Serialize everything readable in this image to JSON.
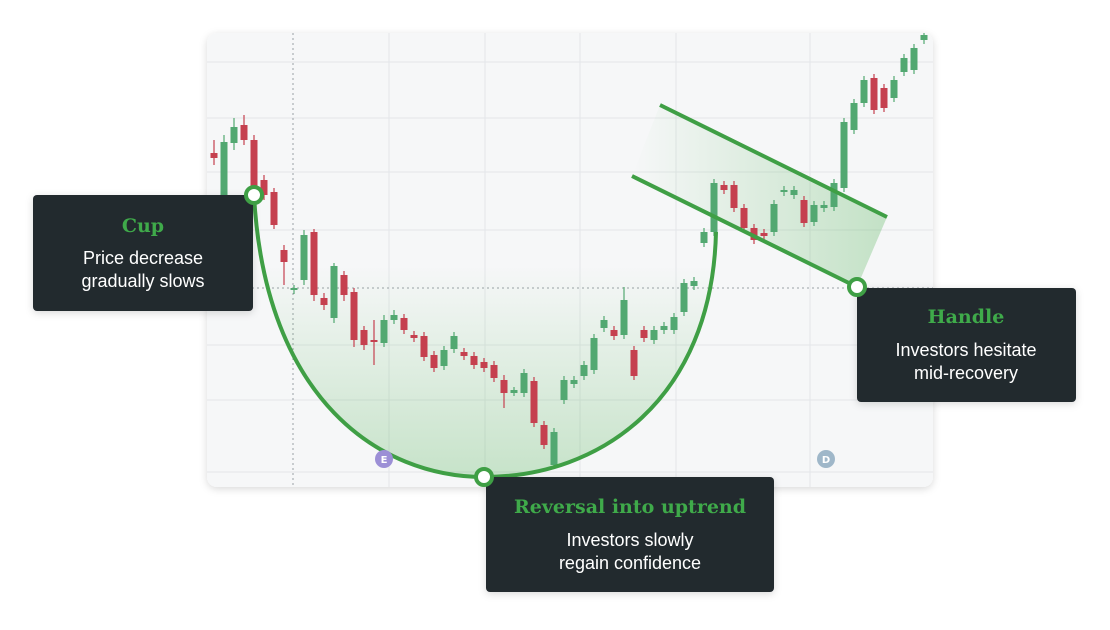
{
  "chart_data": {
    "type": "candlestick",
    "up_color": "#52a871",
    "down_color": "#c5404f",
    "ylim": [
      0,
      454
    ],
    "open": [
      334,
      292,
      344,
      362,
      347,
      307,
      295,
      237,
      197,
      207,
      255,
      189,
      169,
      212,
      195,
      157,
      147,
      144,
      167,
      169,
      152,
      151,
      132,
      121,
      138,
      135,
      131,
      125,
      122,
      107,
      94,
      94,
      106,
      62,
      22,
      87,
      103,
      111,
      117,
      159,
      157,
      152,
      137,
      157,
      147,
      157,
      157,
      175,
      201,
      244,
      255,
      302,
      302,
      279,
      259,
      254,
      255,
      295,
      292,
      287,
      265,
      279,
      280,
      299,
      357,
      384,
      409,
      399,
      389,
      415,
      417,
      447
    ],
    "high": [
      347,
      352,
      369,
      372,
      352,
      312,
      299,
      242,
      202,
      257,
      258,
      194,
      224,
      216,
      199,
      161,
      167,
      172,
      177,
      173,
      156,
      155,
      136,
      141,
      155,
      139,
      135,
      129,
      126,
      112,
      100,
      118,
      110,
      66,
      59,
      111,
      111,
      126,
      153,
      171,
      161,
      200,
      141,
      161,
      161,
      165,
      174,
      208,
      210,
      259,
      308,
      306,
      306,
      283,
      263,
      258,
      287,
      301,
      301,
      291,
      286,
      286,
      308,
      369,
      388,
      411,
      413,
      403,
      411,
      433,
      443,
      454
    ],
    "low": [
      322,
      287,
      337,
      342,
      287,
      287,
      258,
      202,
      193,
      202,
      186,
      177,
      164,
      186,
      140,
      137,
      122,
      140,
      163,
      153,
      145,
      126,
      115,
      117,
      134,
      127,
      118,
      115,
      105,
      79,
      91,
      90,
      60,
      38,
      18,
      83,
      99,
      107,
      113,
      155,
      147,
      148,
      107,
      145,
      143,
      153,
      153,
      171,
      197,
      240,
      251,
      293,
      275,
      255,
      243,
      247,
      251,
      291,
      288,
      260,
      261,
      275,
      276,
      295,
      353,
      380,
      373,
      375,
      385,
      411,
      413,
      443
    ],
    "close": [
      329,
      345,
      360,
      347,
      297,
      292,
      262,
      225,
      199,
      252,
      192,
      182,
      221,
      192,
      147,
      142,
      145,
      167,
      172,
      157,
      149,
      130,
      119,
      137,
      151,
      131,
      122,
      119,
      109,
      94,
      97,
      114,
      64,
      42,
      55,
      107,
      107,
      122,
      149,
      167,
      151,
      187,
      111,
      149,
      157,
      161,
      170,
      204,
      206,
      255,
      304,
      297,
      279,
      259,
      247,
      251,
      283,
      297,
      297,
      264,
      282,
      282,
      304,
      365,
      384,
      407,
      377,
      379,
      407,
      429,
      439,
      452
    ],
    "markers": [
      "E",
      "D"
    ],
    "annotations": [
      {
        "title": "Cup",
        "lines": [
          "Price decrease",
          "gradually slows"
        ]
      },
      {
        "title": "Reversal into uptrend",
        "lines": [
          "Investors slowly",
          "regain confidence"
        ]
      },
      {
        "title": "Handle",
        "lines": [
          "Investors hesitate",
          "mid-recovery"
        ]
      }
    ]
  }
}
